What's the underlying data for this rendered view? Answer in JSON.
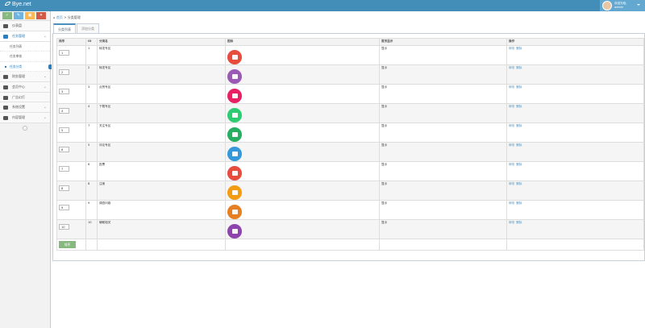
{
  "app": {
    "brand": "Bye.net"
  },
  "user": {
    "welcome": "欢迎光临,",
    "name": "admin"
  },
  "sidebar": {
    "shortcuts": [
      "✓",
      "✎",
      "▣",
      "✦"
    ],
    "items": [
      {
        "label": "仪表盘",
        "icon": "tachometer-icon"
      },
      {
        "label": "任务管理",
        "icon": "flag-icon",
        "open": true
      },
      {
        "label": "财务管理",
        "icon": "credit-card-icon"
      },
      {
        "label": "会员中心",
        "icon": "user-icon"
      },
      {
        "label": "广告幻灯",
        "icon": "image-icon"
      },
      {
        "label": "系统设置",
        "icon": "gear-icon"
      },
      {
        "label": "内容管理",
        "icon": "book-icon"
      }
    ],
    "subitems": [
      "任务列表",
      "任务审核",
      "任务分类"
    ]
  },
  "breadcrumb": {
    "home": "首页",
    "sep": ">",
    "current": "分类管理"
  },
  "tabs": [
    "分类列表",
    "添加分类"
  ],
  "table": {
    "headers": [
      "排序",
      "ID",
      "分类名",
      "图标",
      "首页显示",
      "操作"
    ],
    "rows": [
      {
        "order": "1",
        "id": "1",
        "name": "转发专区",
        "home": "显示",
        "color": "#e74c3c"
      },
      {
        "order": "2",
        "id": "2",
        "name": "转发专区",
        "home": "显示",
        "color": "#9b59b6"
      },
      {
        "order": "3",
        "id": "3",
        "name": "点赞专区",
        "home": "显示",
        "color": "#e91e63"
      },
      {
        "order": "4",
        "id": "4",
        "name": "下载专区",
        "home": "显示",
        "color": "#2ecc71"
      },
      {
        "order": "5",
        "id": "7",
        "name": "关注专区",
        "home": "显示",
        "color": "#27ae60"
      },
      {
        "order": "6",
        "id": "5",
        "name": "评论专区",
        "home": "显示",
        "color": "#3498db"
      },
      {
        "order": "7",
        "id": "6",
        "name": "投票",
        "home": "显示",
        "color": "#e74c3c"
      },
      {
        "order": "8",
        "id": "8",
        "name": "注册",
        "home": "显示",
        "color": "#f39c12"
      },
      {
        "order": "9",
        "id": "9",
        "name": "调查问卷",
        "home": "显示",
        "color": "#e67e22"
      },
      {
        "order": "10",
        "id": "10",
        "name": "辅助相关",
        "home": "显示",
        "color": "#8e44ad"
      }
    ],
    "action_edit": "修改",
    "action_delete": "删除",
    "sort_button": "排序"
  }
}
